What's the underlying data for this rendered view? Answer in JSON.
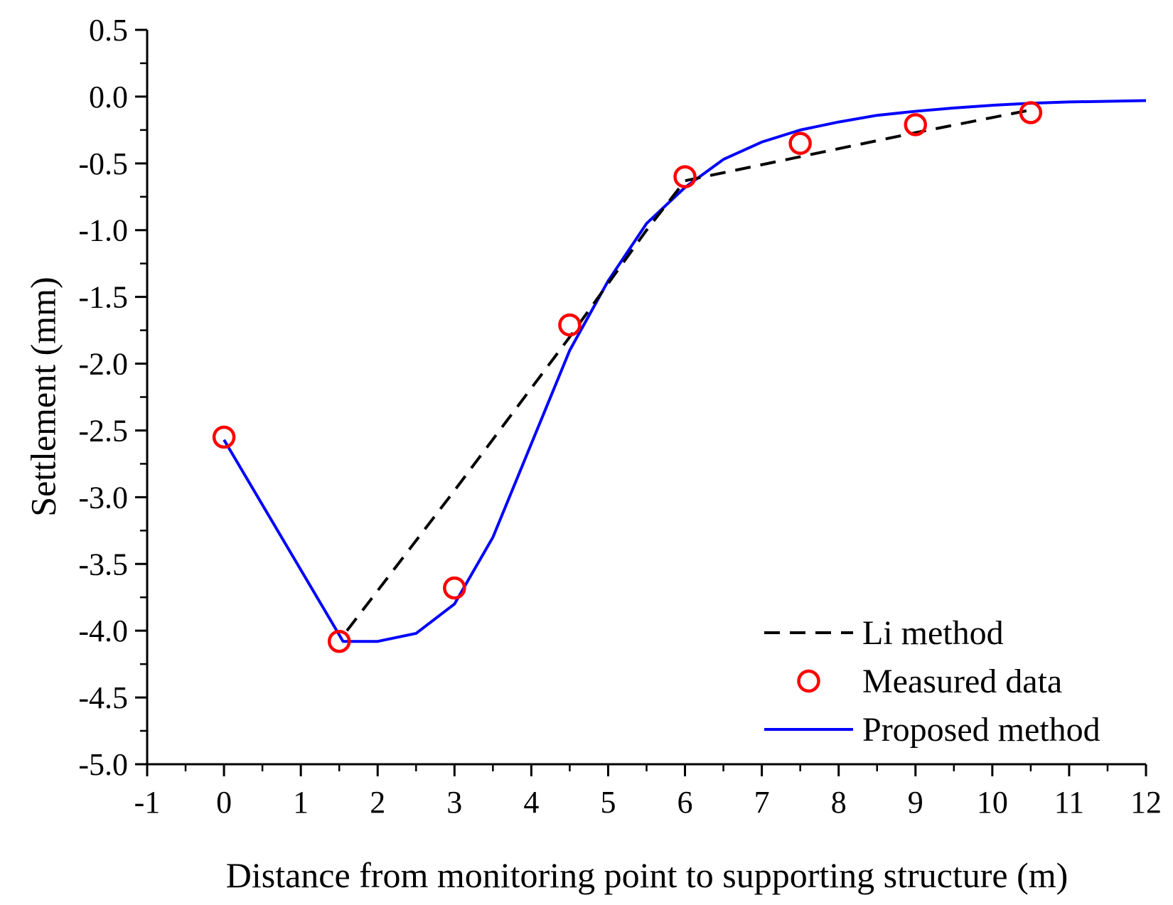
{
  "chart_data": {
    "type": "line",
    "title": "",
    "xlabel": "Distance from monitoring point to supporting structure (m)",
    "ylabel": "Settlement (mm)",
    "xlim": [
      -1,
      12
    ],
    "ylim": [
      -5.0,
      0.5
    ],
    "grid": false,
    "legend_position": "bottom-right",
    "x_ticks": [
      -1,
      0,
      1,
      2,
      3,
      4,
      5,
      6,
      7,
      8,
      9,
      10,
      11,
      12
    ],
    "x_tick_labels": [
      "-1",
      "0",
      "1",
      "2",
      "3",
      "4",
      "5",
      "6",
      "7",
      "8",
      "9",
      "10",
      "11",
      "12"
    ],
    "y_ticks": [
      0.5,
      0.0,
      -0.5,
      -1.0,
      -1.5,
      -2.0,
      -2.5,
      -3.0,
      -3.5,
      -4.0,
      -4.5,
      -5.0
    ],
    "y_tick_labels": [
      "0.5",
      "0.0",
      "-0.5",
      "-1.0",
      "-1.5",
      "-2.0",
      "-2.5",
      "-3.0",
      "-3.5",
      "-4.0",
      "-4.5",
      "-5.0"
    ],
    "series": [
      {
        "name": "Li method",
        "style": "dashed-line",
        "color": "#000000",
        "x": [
          1.6,
          3.0,
          4.5,
          5.5,
          6.0,
          7.5,
          9.0,
          10.5
        ],
        "y": [
          -4.0,
          -2.95,
          -1.8,
          -1.0,
          -0.63,
          -0.45,
          -0.27,
          -0.1
        ]
      },
      {
        "name": "Measured data",
        "style": "markers",
        "color": "#ff0000",
        "x": [
          0,
          1.5,
          3.0,
          4.5,
          6.0,
          7.5,
          9.0,
          10.5
        ],
        "y": [
          -2.55,
          -4.08,
          -3.68,
          -1.71,
          -0.6,
          -0.35,
          -0.21,
          -0.12
        ]
      },
      {
        "name": "Proposed method",
        "style": "solid-line",
        "color": "#0000ff",
        "x": [
          0,
          1.55,
          2.0,
          2.5,
          3.0,
          3.5,
          4.0,
          4.5,
          5.0,
          5.5,
          6.0,
          6.5,
          7.0,
          7.5,
          8.0,
          8.5,
          9.0,
          9.5,
          10.0,
          10.5,
          11.0,
          11.5,
          12.0
        ],
        "y": [
          -2.57,
          -4.08,
          -4.08,
          -4.02,
          -3.8,
          -3.3,
          -2.6,
          -1.9,
          -1.38,
          -0.95,
          -0.68,
          -0.47,
          -0.34,
          -0.25,
          -0.19,
          -0.14,
          -0.11,
          -0.085,
          -0.065,
          -0.05,
          -0.04,
          -0.035,
          -0.03
        ]
      }
    ]
  }
}
